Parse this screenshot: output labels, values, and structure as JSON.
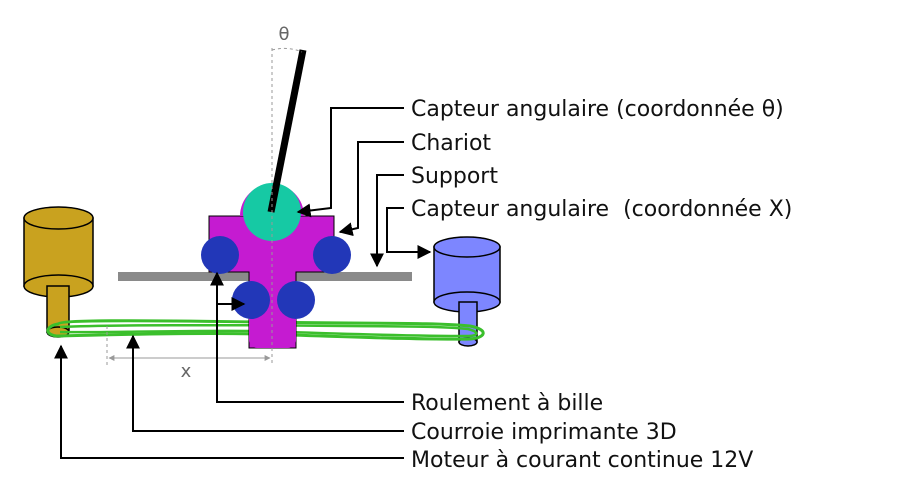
{
  "labels": {
    "angle_sensor_theta": "Capteur angulaire (coordonnée θ)",
    "carriage": "Chariot",
    "support": "Support",
    "angle_sensor_x": "Capteur angulaire  (coordonnée X)",
    "ball_bearing": "Roulement à bille",
    "belt": "Courroie imprimante 3D",
    "motor": "Moteur à courant continue 12V"
  },
  "dimensions": {
    "theta": "θ",
    "x": "x"
  },
  "colors": {
    "motor": "#c9a21f",
    "motor_dark": "#a8860f",
    "sensor_x": "#7d86ff",
    "sensor_x_dark": "#5e66e6",
    "carriage": "#c51bd1",
    "wheels": "#2237b8",
    "sensor_theta": "#16c9a4",
    "support_bar": "#8a8a8a",
    "belt": "#3bbf2c",
    "pendulum": "#000000",
    "leader": "#000000",
    "dimension": "#999999"
  }
}
